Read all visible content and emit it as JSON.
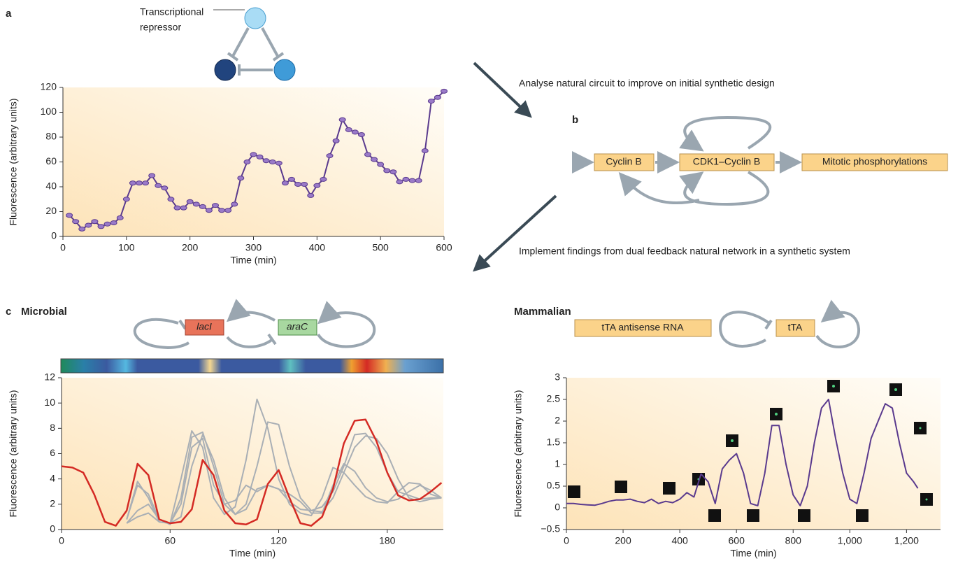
{
  "diagram": {
    "panel_a": "a",
    "repressor_label": [
      "Transcriptional",
      "repressor"
    ],
    "arrow_1_text": "Analyse natural circuit to improve on initial synthetic design",
    "panel_b": "b",
    "b_nodes": [
      "Cyclin B",
      "CDK1–Cyclin B",
      "Mitotic phosphorylations"
    ],
    "arrow_2_text": "Implement findings from dual feedback natural network in a synthetic system",
    "panel_c": "c",
    "microbial_title": "Microbial",
    "microbial_genes": [
      "lacI",
      "araC"
    ],
    "mammalian_title": "Mammalian",
    "mammalian_nodes": [
      "tTA antisense RNA",
      "tTA"
    ]
  },
  "chart_data": [
    {
      "type": "line",
      "x_label": "Time (min)",
      "y_label": "Fluorescence (arbitrary units)",
      "x": [
        10,
        20,
        30,
        40,
        50,
        60,
        70,
        80,
        90,
        100,
        110,
        120,
        130,
        140,
        150,
        160,
        170,
        180,
        190,
        200,
        210,
        220,
        230,
        240,
        250,
        260,
        270,
        280,
        290,
        300,
        310,
        320,
        330,
        340,
        350,
        360,
        370,
        380,
        390,
        400,
        410,
        420,
        430,
        440,
        450,
        460,
        470,
        480,
        490,
        500,
        510,
        520,
        530,
        540,
        550,
        560,
        570,
        580,
        590,
        600
      ],
      "series": [
        {
          "color": "#5a3a8e",
          "markers": true,
          "values": [
            17,
            12,
            6,
            9,
            12,
            8,
            10,
            11,
            15,
            30,
            43,
            43,
            43,
            49,
            41,
            39,
            30,
            23,
            23,
            28,
            26,
            24,
            21,
            25,
            21,
            21,
            26,
            47,
            60,
            66,
            64,
            61,
            60,
            59,
            43,
            46,
            42,
            42,
            33,
            41,
            46,
            65,
            77,
            94,
            86,
            84,
            82,
            66,
            62,
            58,
            53,
            52,
            44,
            46,
            45,
            45,
            69,
            109,
            112,
            117
          ]
        }
      ],
      "xlim": [
        0,
        600
      ],
      "ylim": [
        0,
        120
      ],
      "xticks": [
        0,
        100,
        200,
        300,
        400,
        500,
        600
      ],
      "yticks": [
        0,
        20,
        40,
        60,
        80,
        100,
        120
      ]
    },
    {
      "type": "line",
      "x_label": "Time (min)",
      "y_label": "Fluorescence (arbitrary units)",
      "x": [
        0,
        6,
        12,
        18,
        24,
        30,
        36,
        42,
        48,
        54,
        60,
        66,
        72,
        78,
        84,
        90,
        96,
        102,
        108,
        114,
        120,
        126,
        132,
        138,
        144,
        150,
        156,
        162,
        168,
        174,
        180,
        186,
        192,
        198,
        204,
        210
      ],
      "series": [
        {
          "color": "#a9afb5",
          "values": [
            null,
            null,
            null,
            null,
            null,
            null,
            0.8,
            3.8,
            2.5,
            0.6,
            0.5,
            4,
            7.8,
            6.5,
            2.5,
            1.2,
            1.8,
            5.5,
            10.3,
            8,
            4,
            2,
            1.3,
            1.1,
            2.5,
            4.9,
            4.5,
            3.5,
            2.6,
            2.2,
            2.1,
            3,
            3.7,
            3.6,
            2.8,
            2.5
          ]
        },
        {
          "color": "#a9afb5",
          "values": [
            null,
            null,
            null,
            null,
            null,
            null,
            0.8,
            3.5,
            2.8,
            0.8,
            0.4,
            2.5,
            7.3,
            7.7,
            5,
            2,
            1.2,
            2,
            5,
            8.5,
            8.3,
            5,
            2.5,
            1.5,
            1.4,
            2.5,
            4.5,
            6.5,
            7.4,
            7.2,
            6,
            4,
            2.5,
            2.2,
            2.4,
            2.5
          ]
        },
        {
          "color": "#a9afb5",
          "values": [
            null,
            null,
            null,
            null,
            null,
            null,
            0.5,
            1.5,
            2,
            0.8,
            0.5,
            1,
            5,
            7.5,
            5.5,
            2.5,
            1.2,
            1.6,
            3.2,
            3.5,
            3.2,
            2.8,
            2.2,
            1.3,
            1.3,
            3.5,
            5.2,
            4.6,
            3.3,
            2.5,
            2.2,
            2.4,
            3,
            3.5,
            3.1,
            2.5
          ]
        },
        {
          "color": "#a9afb5",
          "values": [
            null,
            null,
            null,
            null,
            null,
            null,
            0.5,
            1,
            1.3,
            0.6,
            0.5,
            2,
            6.5,
            7.2,
            3.5,
            2,
            2.3,
            3.5,
            3,
            3.5,
            3.2,
            2.2,
            1.6,
            1.5,
            1.8,
            3,
            5,
            7.5,
            7.6,
            6.5,
            4.5,
            3,
            2.7,
            2.4,
            2.5,
            2.5
          ]
        },
        {
          "color": "#d42a24",
          "values": [
            5,
            4.9,
            4.5,
            2.8,
            0.6,
            0.3,
            1.5,
            5.2,
            4.3,
            0.8,
            0.5,
            0.6,
            1.6,
            5.5,
            4.3,
            1.5,
            0.5,
            0.4,
            0.8,
            3.6,
            4.7,
            2.5,
            0.5,
            0.3,
            1,
            3.2,
            6.8,
            8.6,
            8.7,
            7,
            4.5,
            2.7,
            2.3,
            2.4,
            3,
            3.7
          ]
        }
      ],
      "xlim": [
        0,
        211
      ],
      "ylim": [
        0,
        12
      ],
      "xticks": [
        0,
        60,
        120,
        180
      ],
      "yticks": [
        0,
        2,
        4,
        6,
        8,
        10,
        12
      ]
    },
    {
      "type": "line",
      "x_label": "Time (min)",
      "y_label": "Fluorescence (arbitrary units)",
      "x": [
        0,
        25,
        50,
        75,
        100,
        125,
        150,
        175,
        200,
        225,
        250,
        275,
        300,
        325,
        350,
        375,
        400,
        425,
        450,
        475,
        500,
        525,
        550,
        575,
        600,
        625,
        650,
        675,
        700,
        725,
        750,
        775,
        800,
        825,
        850,
        875,
        900,
        925,
        950,
        975,
        1000,
        1025,
        1050,
        1075,
        1100,
        1125,
        1150,
        1175,
        1200,
        1225,
        1240
      ],
      "series": [
        {
          "color": "#5a3a8e",
          "values": [
            0.1,
            0.1,
            0.08,
            0.07,
            0.06,
            0.1,
            0.15,
            0.18,
            0.18,
            0.2,
            0.15,
            0.12,
            0.2,
            0.1,
            0.15,
            0.12,
            0.2,
            0.35,
            0.25,
            0.78,
            0.6,
            0.1,
            0.9,
            1.1,
            1.25,
            0.8,
            0.1,
            0.05,
            0.8,
            1.9,
            1.9,
            1,
            0.3,
            0.05,
            0.5,
            1.5,
            2.3,
            2.5,
            1.6,
            0.8,
            0.2,
            0.1,
            0.8,
            1.6,
            2,
            2.4,
            2.3,
            1.5,
            0.8,
            0.6,
            0.45
          ]
        }
      ],
      "xlim": [
        0,
        1320
      ],
      "ylim": [
        -0.5,
        3
      ],
      "xticks": [
        0,
        200,
        400,
        600,
        800,
        {
          "value": 1000,
          "label": "1,000"
        },
        {
          "value": 1200,
          "label": "1,200"
        }
      ],
      "yticks": [
        {
          "value": -0.5,
          "label": "−0.5"
        },
        0,
        0.5,
        1,
        1.5,
        2,
        2.5,
        3
      ]
    }
  ]
}
